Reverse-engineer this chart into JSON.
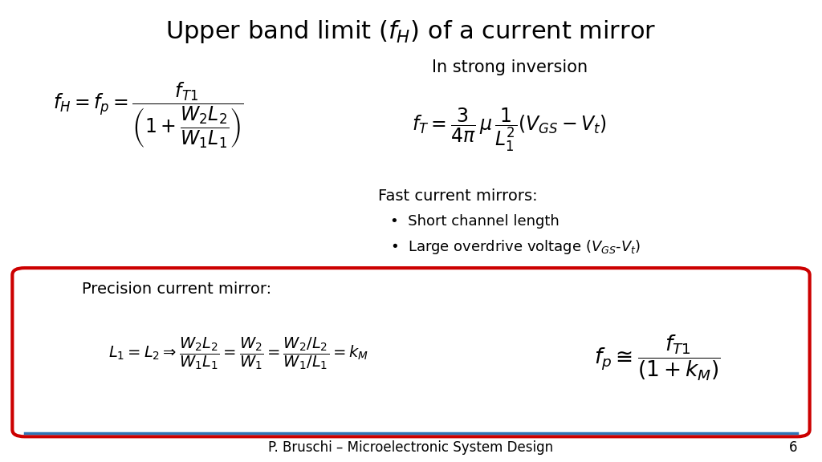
{
  "title": "Upper band limit ($f_H$) of a current mirror",
  "title_fontsize": 22,
  "background_color": "#ffffff",
  "text_color": "#000000",
  "footer_text": "P. Bruschi – Microelectronic System Design",
  "footer_page": "6",
  "top_line_color": "#2e75b6",
  "box_color": "#cc0000",
  "formula_left": "$f_H = f_p = \\dfrac{f_{T1}}{\\left(1+\\dfrac{W_2 L_2}{W_1 L_1}\\right)}$",
  "label_strong": "In strong inversion",
  "formula_ft": "$f_T = \\dfrac{3}{4\\pi}\\,\\mu\\,\\dfrac{1}{L_1^2}\\left(V_{GS}-V_t\\right)$",
  "label_fast": "Fast current mirrors:",
  "bullet1": "Short channel length",
  "bullet2": "Large overdrive voltage ($V_{GS}$-$V_t$)",
  "label_precision": "Precision current mirror:",
  "formula_precision": "$L_1 = L_2 \\Rightarrow \\dfrac{W_2 L_2}{W_1 L_1} = \\dfrac{W_2}{W_1} = \\dfrac{W_2 / L_2}{W_1 / L_1} = k_M$",
  "formula_fp": "$f_p \\cong \\dfrac{f_{T1}}{\\left(1+k_M\\right)}$"
}
